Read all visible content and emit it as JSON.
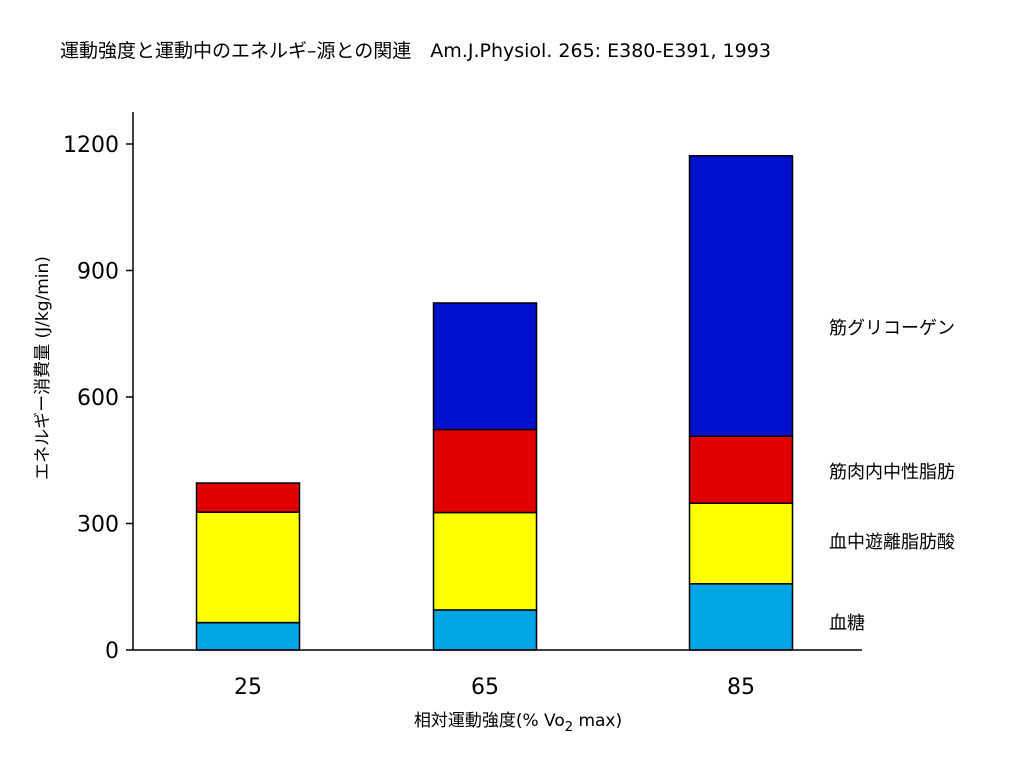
{
  "chart_data": {
    "type": "bar",
    "stacked": true,
    "title": "運動強度と運動中のエネルギ–源との関連　Am.J.Physiol. 265: E380-E391, 1993",
    "xlabel_main": "相対運動強度(% Vo",
    "xlabel_sub": "2",
    "xlabel_tail": " max)",
    "ylabel": "エネルギー消費量 (J/kg/min)",
    "categories": [
      "25",
      "65",
      "85"
    ],
    "yticks": [
      "0",
      "300",
      "600",
      "900",
      "1200"
    ],
    "ylim": [
      0,
      1250
    ],
    "grid": false,
    "legend_position": "right",
    "series": [
      {
        "name": "血糖",
        "color": "#00a6e6",
        "values": [
          65,
          95,
          157
        ]
      },
      {
        "name": "血中遊離脂肪酸",
        "color": "#ffff00",
        "values": [
          262,
          231,
          191
        ]
      },
      {
        "name": "筋肉内中性脂肪",
        "color": "#e00000",
        "values": [
          69,
          197,
          159
        ]
      },
      {
        "name": "筋グリコーゲン",
        "color": "#0010cc",
        "values": [
          0,
          300,
          665
        ]
      }
    ]
  }
}
